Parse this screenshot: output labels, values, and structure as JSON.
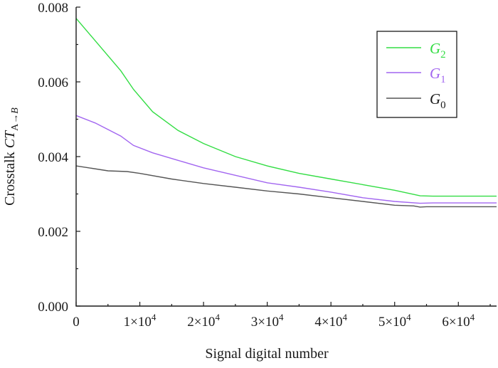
{
  "chart_data": {
    "type": "line",
    "xlabel": "Signal digital number",
    "ylabel": {
      "prefix": "Crosstalk ",
      "symbol": "CT",
      "subscript_a": "A",
      "arrow": "→",
      "subscript_b": "B"
    },
    "xlim": [
      0,
      66000
    ],
    "ylim": [
      0,
      0.008
    ],
    "x_ticks": [
      {
        "value": 0,
        "mantissa": "0",
        "exp": ""
      },
      {
        "value": 10000,
        "mantissa": "1×10",
        "exp": "4"
      },
      {
        "value": 20000,
        "mantissa": "2×10",
        "exp": "4"
      },
      {
        "value": 30000,
        "mantissa": "3×10",
        "exp": "4"
      },
      {
        "value": 40000,
        "mantissa": "4×10",
        "exp": "4"
      },
      {
        "value": 50000,
        "mantissa": "5×10",
        "exp": "4"
      },
      {
        "value": 60000,
        "mantissa": "6×10",
        "exp": "4"
      }
    ],
    "y_ticks": [
      {
        "value": 0,
        "label": "0.000"
      },
      {
        "value": 0.002,
        "label": "0.002"
      },
      {
        "value": 0.004,
        "label": "0.004"
      },
      {
        "value": 0.006,
        "label": "0.006"
      },
      {
        "value": 0.008,
        "label": "0.008"
      }
    ],
    "grid": false,
    "legend_position": "top-right",
    "series": [
      {
        "name": "G2",
        "letter": "G",
        "subscript": "2",
        "color": "#33dd44",
        "x": [
          0,
          3000,
          7000,
          9000,
          12000,
          16000,
          20000,
          25000,
          30000,
          35000,
          40000,
          45000,
          50000,
          54000,
          56000,
          60000,
          66000
        ],
        "y": [
          0.0077,
          0.0071,
          0.0063,
          0.0058,
          0.0052,
          0.0047,
          0.00435,
          0.004,
          0.00375,
          0.00355,
          0.0034,
          0.00325,
          0.0031,
          0.00295,
          0.00294,
          0.00294,
          0.00294
        ]
      },
      {
        "name": "G1",
        "letter": "G",
        "subscript": "1",
        "color": "#a266f0",
        "x": [
          0,
          3000,
          7000,
          9000,
          12000,
          16000,
          20000,
          25000,
          30000,
          35000,
          40000,
          45000,
          50000,
          54000,
          56000,
          60000,
          66000
        ],
        "y": [
          0.0051,
          0.0049,
          0.00455,
          0.0043,
          0.0041,
          0.0039,
          0.0037,
          0.0035,
          0.0033,
          0.00318,
          0.00305,
          0.0029,
          0.0028,
          0.00275,
          0.00276,
          0.00276,
          0.00276
        ]
      },
      {
        "name": "G0",
        "letter": "G",
        "subscript": "0",
        "color": "#555555",
        "x": [
          0,
          2000,
          5000,
          8000,
          10000,
          15000,
          20000,
          25000,
          30000,
          35000,
          40000,
          45000,
          50000,
          53000,
          54000,
          55000,
          60000,
          66000
        ],
        "y": [
          0.00375,
          0.0037,
          0.00362,
          0.0036,
          0.00355,
          0.0034,
          0.00328,
          0.00318,
          0.00308,
          0.003,
          0.0029,
          0.0028,
          0.0027,
          0.00268,
          0.00265,
          0.00266,
          0.00266,
          0.00266
        ]
      }
    ],
    "legend_order": [
      0,
      1,
      2
    ]
  }
}
